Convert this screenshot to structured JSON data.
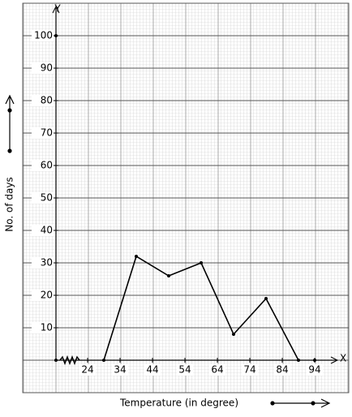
{
  "chart_data": {
    "type": "line",
    "x_label": "Temperature (in degree)",
    "y_label": "No. of days",
    "x_axis_name": "X",
    "y_axis_name": "Y",
    "x": [
      29,
      39,
      49,
      59,
      69,
      79,
      89
    ],
    "values": [
      0,
      32,
      26,
      30,
      8,
      19,
      0
    ],
    "color": "#000000",
    "xlim": [
      14.25,
      99
    ],
    "ylim": [
      0,
      110
    ],
    "xticks": [
      24,
      34,
      44,
      54,
      64,
      74,
      84,
      94
    ],
    "yticks": [
      10,
      20,
      30,
      40,
      50,
      60,
      70,
      80,
      90,
      100
    ],
    "grid": true
  }
}
